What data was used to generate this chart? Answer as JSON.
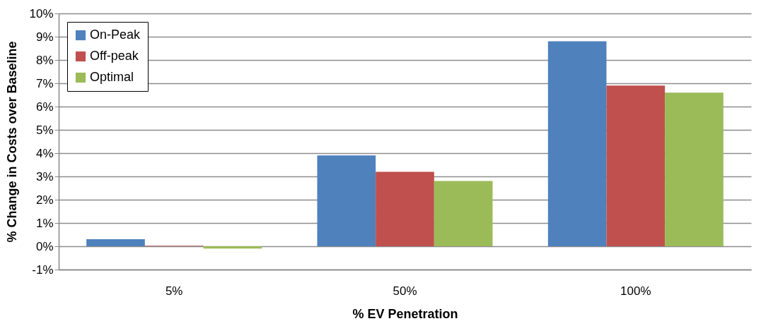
{
  "chart_data": {
    "type": "bar",
    "xlabel": "% EV Penetration",
    "ylabel": "% Change in Costs over Baseline",
    "categories": [
      "5%",
      "50%",
      "100%"
    ],
    "series": [
      {
        "name": "On-Peak",
        "color": "#4f81bd",
        "values": [
          0.3,
          3.9,
          8.8
        ]
      },
      {
        "name": "Off-peak",
        "color": "#c0504d",
        "values": [
          0.02,
          3.2,
          6.9
        ]
      },
      {
        "name": "Optimal",
        "color": "#9bbb59",
        "values": [
          -0.1,
          2.8,
          6.6
        ]
      }
    ],
    "ylim": [
      -1,
      10
    ],
    "yticks": [
      {
        "value": -1,
        "label": "-1%"
      },
      {
        "value": 0,
        "label": "0%"
      },
      {
        "value": 1,
        "label": "1%"
      },
      {
        "value": 2,
        "label": "2%"
      },
      {
        "value": 3,
        "label": "3%"
      },
      {
        "value": 4,
        "label": "4%"
      },
      {
        "value": 5,
        "label": "5%"
      },
      {
        "value": 6,
        "label": "6%"
      },
      {
        "value": 7,
        "label": "7%"
      },
      {
        "value": 8,
        "label": "8%"
      },
      {
        "value": 9,
        "label": "9%"
      },
      {
        "value": 10,
        "label": "10%"
      }
    ],
    "grid": "y",
    "legend": "top left"
  }
}
